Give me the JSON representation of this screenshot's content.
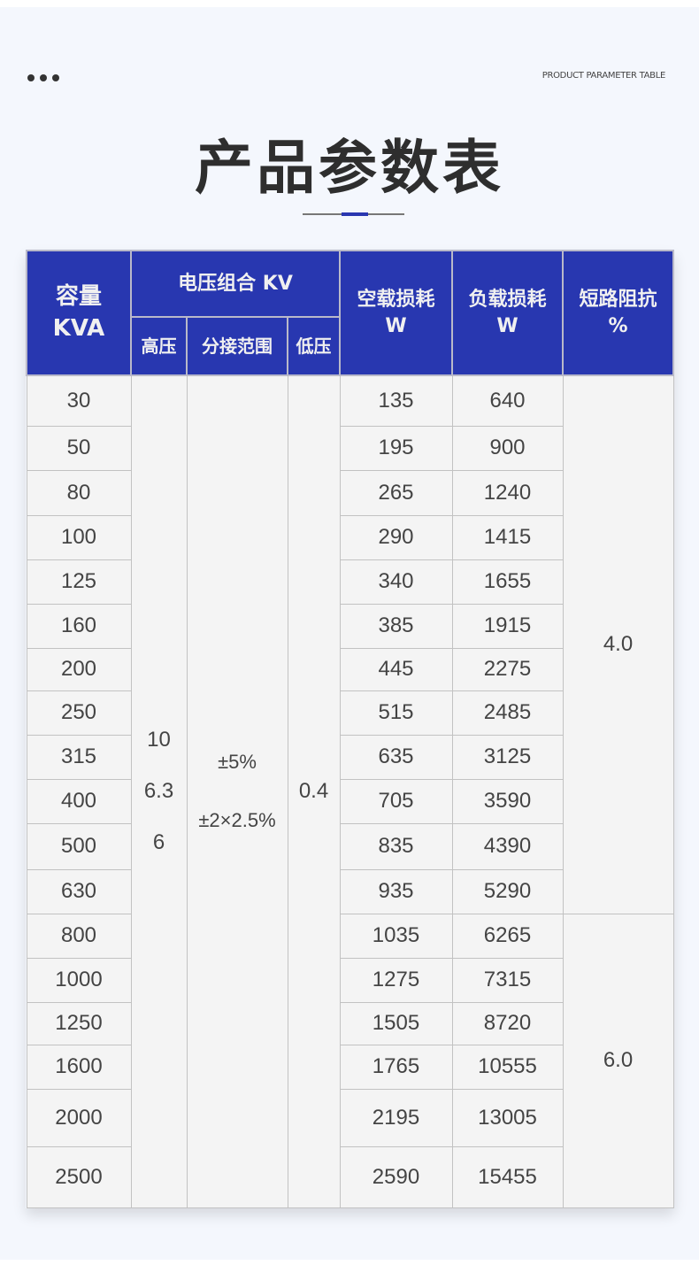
{
  "header": {
    "subtitle": "PRODUCT PARAMETER TABLE",
    "title": "产品参数表"
  },
  "table": {
    "headers": {
      "capacity": "容量\nKVA",
      "voltage_group": "电压组合 KV",
      "high": "高压",
      "tap": "分接范围",
      "low": "低压",
      "no_load": "空载损耗\nW",
      "load": "负载损耗\nW",
      "impedance": "短路阻抗\n%"
    },
    "high_voltage": [
      "10",
      "6.3",
      "6"
    ],
    "tap_range": [
      "±5%",
      "±2×2.5%"
    ],
    "low_voltage": "0.4",
    "impedance": [
      "4.0",
      "6.0"
    ],
    "rows": [
      [
        "30",
        "135",
        "640"
      ],
      [
        "50",
        "195",
        "900"
      ],
      [
        "80",
        "265",
        "1240"
      ],
      [
        "100",
        "290",
        "1415"
      ],
      [
        "125",
        "340",
        "1655"
      ],
      [
        "160",
        "385",
        "1915"
      ],
      [
        "200",
        "445",
        "2275"
      ],
      [
        "250",
        "515",
        "2485"
      ],
      [
        "315",
        "635",
        "3125"
      ],
      [
        "400",
        "705",
        "3590"
      ],
      [
        "500",
        "835",
        "4390"
      ],
      [
        "630",
        "935",
        "5290"
      ],
      [
        "800",
        "1035",
        "6265"
      ],
      [
        "1000",
        "1275",
        "7315"
      ],
      [
        "1250",
        "1505",
        "8720"
      ],
      [
        "1600",
        "1765",
        "10555"
      ],
      [
        "2000",
        "2195",
        "13005"
      ],
      [
        "2500",
        "2590",
        "15455"
      ]
    ]
  }
}
